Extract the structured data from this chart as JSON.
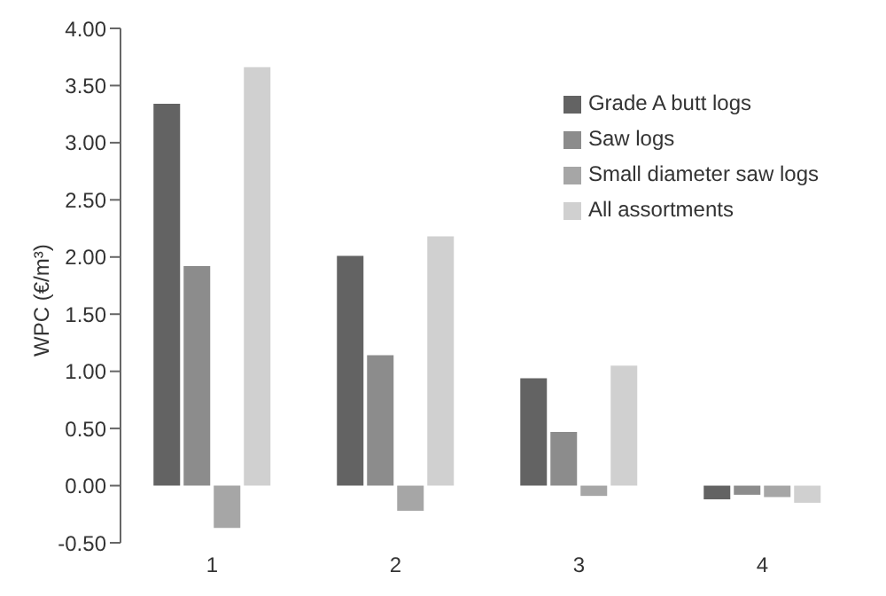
{
  "chart_data": {
    "type": "bar",
    "ylabel": "WPC (€/m³)",
    "categories": [
      "1",
      "2",
      "3",
      "4"
    ],
    "series": [
      {
        "name": "Grade A butt logs",
        "color": "#636363",
        "values": [
          3.34,
          2.01,
          0.94,
          -0.12
        ]
      },
      {
        "name": "Saw logs",
        "color": "#8c8c8c",
        "values": [
          1.92,
          1.14,
          0.47,
          -0.08
        ]
      },
      {
        "name": "Small diameter saw logs",
        "color": "#a6a6a6",
        "values": [
          -0.37,
          -0.22,
          -0.09,
          -0.1
        ]
      },
      {
        "name": "All assortments",
        "color": "#d0d0d0",
        "values": [
          3.66,
          2.18,
          1.05,
          -0.15
        ]
      }
    ],
    "ylim": [
      -0.5,
      4
    ],
    "yticks": [
      {
        "value": -0.5,
        "label": "-0.50"
      },
      {
        "value": 0,
        "label": "0.00"
      },
      {
        "value": 0.5,
        "label": "0.50"
      },
      {
        "value": 1,
        "label": "1.00"
      },
      {
        "value": 1.5,
        "label": "1.50"
      },
      {
        "value": 2,
        "label": "2.00"
      },
      {
        "value": 2.5,
        "label": "2.50"
      },
      {
        "value": 3,
        "label": "3.00"
      },
      {
        "value": 3.5,
        "label": "3.50"
      },
      {
        "value": 4,
        "label": "4.00"
      }
    ],
    "grid": false,
    "legend": "top right"
  }
}
